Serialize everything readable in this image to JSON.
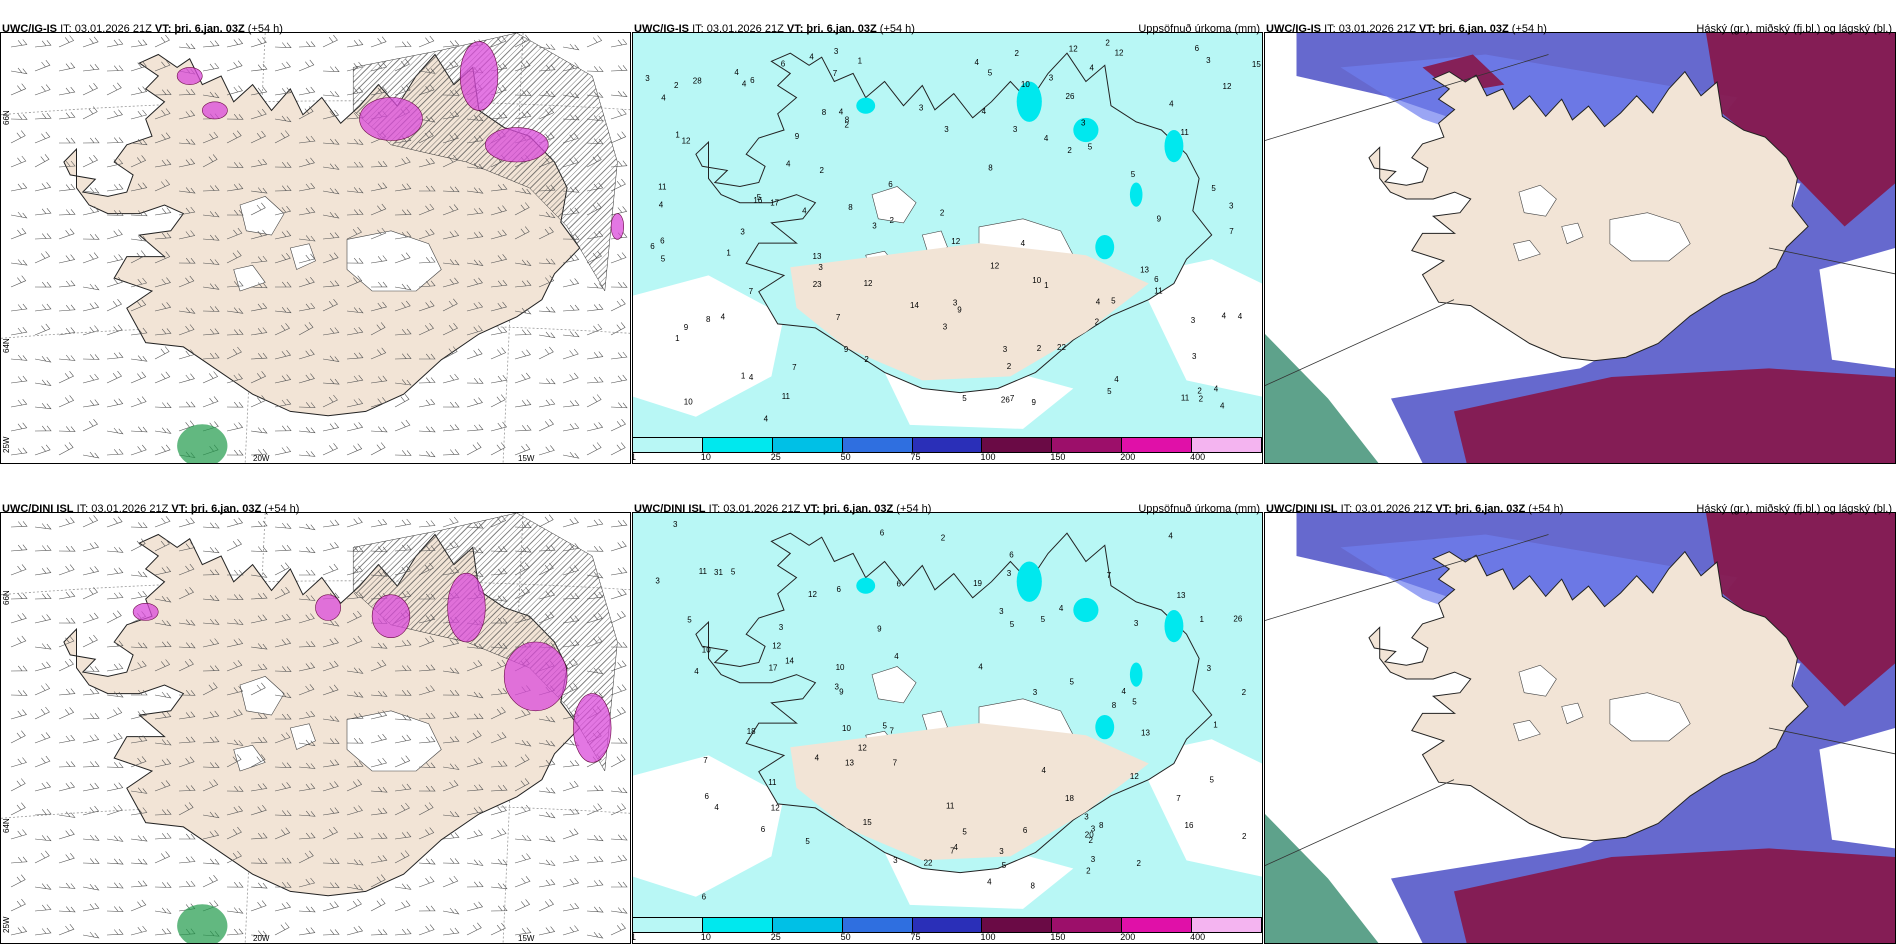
{
  "rows": [
    {
      "model": "UWC/IG-IS",
      "it_text": "IT: 03.01.2026 21Z",
      "vt_label": "VT: þri. 6.jan. 03Z",
      "lead": "(+54 h)"
    },
    {
      "model": "UWC/DINI ISL",
      "it_text": "IT: 03.01.2026 21Z",
      "vt_label": "VT: þri. 6.jan. 03Z",
      "lead": "(+54 h)"
    }
  ],
  "panel_titles": {
    "precip": "Uppsöfnuð úrkoma (mm)",
    "cloud": "Háský (gr.), miðský (fj.bl.) og lágský (bl.)"
  },
  "coords": {
    "lat66": "66N",
    "lat64": "64N",
    "lon25": "25W",
    "lon20": "20W",
    "lon15": "15W"
  },
  "legend": {
    "labels": [
      "1",
      "10",
      "25",
      "50",
      "75",
      "100",
      "150",
      "200",
      "400"
    ],
    "colors": [
      "#b8f7f5",
      "#00e8ee",
      "#00c0e6",
      "#2f6fe0",
      "#2a2fb8",
      "#6a0a45",
      "#9c0f6a",
      "#e010a8",
      "#f4b4f0"
    ]
  },
  "colors": {
    "land": "#f2e4d6",
    "wind_snow": "#d94ad9",
    "cloud_high": "#8a1040",
    "cloud_mid": "#4b4fc6",
    "cloud_low": "#1a7a5a"
  },
  "precip_values": {
    "top": [
      "2",
      "5",
      "4",
      "3",
      "3",
      "4",
      "12",
      "12",
      "3",
      "4",
      "4",
      "6",
      "5",
      "7",
      "8",
      "12",
      "13",
      "11",
      "3",
      "3",
      "4",
      "4",
      "4",
      "7",
      "8",
      "12",
      "10",
      "22",
      "26",
      "12",
      "11",
      "4",
      "3",
      "4",
      "5",
      "4",
      "7",
      "10",
      "11",
      "13",
      "9",
      "12",
      "14",
      "9",
      "3",
      "4",
      "3",
      "5",
      "4",
      "7",
      "11",
      "9",
      "5",
      "26",
      "23",
      "3",
      "3",
      "4",
      "5",
      "4",
      "4",
      "3",
      "6",
      "7",
      "8",
      "6",
      "28",
      "17",
      "4",
      "10",
      "3",
      "6",
      "4",
      "6",
      "4",
      "8",
      "5",
      "9",
      "16",
      "15",
      "12",
      "4",
      "2",
      "3",
      "3",
      "11",
      "9",
      "1",
      "2",
      "5",
      "2",
      "4",
      "3",
      "2",
      "4",
      "4",
      "1",
      "2",
      "2",
      "2",
      "3",
      "9",
      "7",
      "1",
      "1",
      "2",
      "2",
      "2",
      "6",
      "2",
      "8",
      "5",
      "1",
      "2",
      "3",
      "4",
      "6",
      "2",
      "1"
    ],
    "bottom": [
      "3",
      "5",
      "4",
      "3",
      "2",
      "4",
      "4",
      "7",
      "4",
      "12",
      "11",
      "16",
      "22",
      "8",
      "7",
      "5",
      "3",
      "3",
      "5",
      "5",
      "5",
      "13",
      "17",
      "9",
      "3",
      "5",
      "6",
      "4",
      "6",
      "10",
      "11",
      "18",
      "12",
      "11",
      "20",
      "9",
      "31",
      "8",
      "7",
      "4",
      "6",
      "6",
      "10",
      "6",
      "4",
      "3",
      "10",
      "7",
      "6",
      "6",
      "7",
      "5",
      "5",
      "5",
      "26",
      "15",
      "13",
      "4",
      "5",
      "2",
      "3",
      "5",
      "14",
      "12",
      "19",
      "18",
      "12",
      "3",
      "7",
      "3",
      "2",
      "4",
      "2",
      "3",
      "3",
      "12",
      "13",
      "1",
      "2",
      "8",
      "3",
      "6",
      "4",
      "3",
      "2",
      "4",
      "1",
      "3"
    ]
  }
}
